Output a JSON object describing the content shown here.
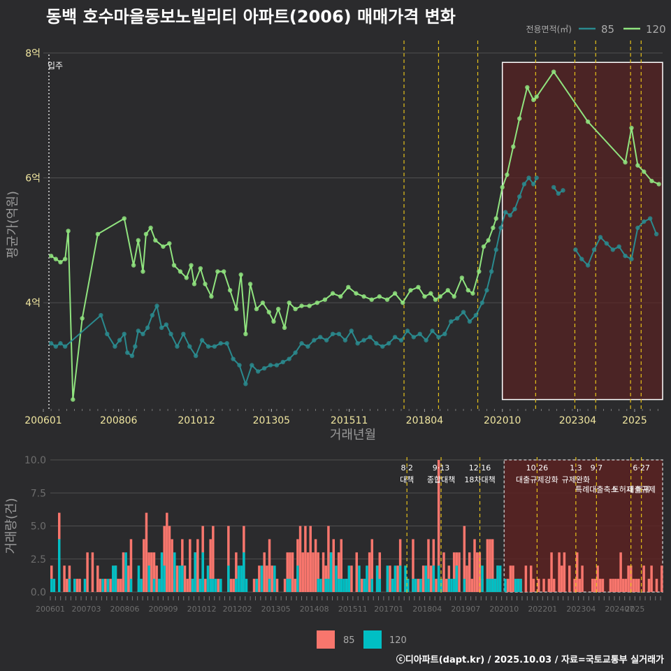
{
  "title": "동백 호수마을동보노빌리티 아파트(2006) 매매가격 변화",
  "caption": "ⓒ디아파트(dapt.kr) / 2025.10.03 / 자료=국토교통부 실거래가",
  "colors": {
    "background": "#2b2b2d",
    "price_85": "#2a8a8e",
    "price_120": "#90e47f",
    "vol_85": "#f8766d",
    "vol_120": "#00bfc4",
    "policy_line": "#e6c21a",
    "highlight_fill": "#5a2222",
    "grid": "#505050"
  },
  "chart_data": [
    {
      "type": "line",
      "name": "price",
      "title": "동백 호수마을동보노빌리티 아파트(2006) 매매가격 변화",
      "xlabel": "거래년월",
      "ylabel": "평균가(억원)",
      "xlim": [
        2006.0,
        2025.9
      ],
      "ylim": [
        2.3,
        8.2
      ],
      "y_ticks": [
        4,
        6,
        8
      ],
      "y_tick_labels": [
        "4억",
        "6억",
        "8억"
      ],
      "x_ticks": [
        2006.0,
        2008.42,
        2010.92,
        2013.33,
        2015.83,
        2018.25,
        2020.75,
        2023.17,
        2025.0
      ],
      "x_tick_labels": [
        "200601",
        "200806",
        "201012",
        "201305",
        "201511",
        "201804",
        "202010",
        "202304",
        "2025"
      ],
      "legend_title": "전용면적(㎡)",
      "legend_position": "top-right",
      "annotation": "입주",
      "annotation_x": 2006.0,
      "highlight_range": [
        2020.75,
        2025.9
      ],
      "policy_dates": [
        2017.59,
        2018.7,
        2019.96,
        2021.82,
        2023.08,
        2023.75,
        2024.87,
        2025.21
      ],
      "series": [
        {
          "name": "120",
          "x": [
            2006.25,
            2006.4,
            2006.55,
            2006.7,
            2006.8,
            2006.95,
            2007.25,
            2007.75,
            2008.6,
            2008.9,
            2009.05,
            2009.2,
            2009.3,
            2009.45,
            2009.6,
            2009.85,
            2010.05,
            2010.2,
            2010.4,
            2010.6,
            2010.75,
            2010.85,
            2011.05,
            2011.2,
            2011.4,
            2011.6,
            2011.8,
            2012.0,
            2012.2,
            2012.35,
            2012.5,
            2012.65,
            2012.85,
            2013.05,
            2013.25,
            2013.4,
            2013.55,
            2013.75,
            2013.9,
            2014.1,
            2014.3,
            2014.55,
            2014.8,
            2015.05,
            2015.3,
            2015.55,
            2015.8,
            2016.05,
            2016.3,
            2016.55,
            2016.8,
            2017.05,
            2017.3,
            2017.55,
            2017.8,
            2018.05,
            2018.25,
            2018.45,
            2018.6,
            2018.75,
            2019.0,
            2019.2,
            2019.45,
            2019.65,
            2019.8,
            2020.0,
            2020.15,
            2020.3,
            2020.45,
            2020.55,
            2020.75,
            2020.9,
            2021.1,
            2021.3,
            2021.55,
            2021.75,
            2021.85,
            2022.4,
            2023.5,
            2024.7,
            2024.9,
            2025.1,
            2025.3,
            2025.55,
            2025.78
          ],
          "values": [
            4.75,
            4.7,
            4.65,
            4.7,
            5.15,
            2.45,
            3.75,
            5.1,
            5.35,
            4.6,
            5.0,
            4.5,
            5.1,
            5.2,
            5.0,
            4.9,
            4.95,
            4.6,
            4.5,
            4.4,
            4.6,
            4.3,
            4.55,
            4.3,
            4.1,
            4.5,
            4.5,
            4.2,
            3.9,
            4.45,
            3.5,
            4.3,
            3.9,
            4.0,
            3.85,
            3.7,
            3.9,
            3.6,
            4.0,
            3.9,
            3.95,
            3.95,
            4.0,
            4.05,
            4.15,
            4.1,
            4.25,
            4.15,
            4.1,
            4.05,
            4.1,
            4.05,
            4.15,
            4.0,
            4.2,
            4.25,
            4.1,
            4.15,
            4.05,
            4.1,
            4.2,
            4.1,
            4.4,
            4.2,
            4.15,
            4.5,
            4.9,
            5.0,
            5.2,
            5.35,
            5.85,
            6.05,
            6.5,
            6.95,
            7.45,
            7.25,
            7.3,
            7.7,
            6.9,
            6.25,
            6.8,
            6.2,
            6.1,
            5.95,
            5.9
          ]
        },
        {
          "name": "85",
          "x": [
            2006.25,
            2006.4,
            2006.55,
            2006.7,
            2007.85,
            2008.05,
            2008.3,
            2008.45,
            2008.6,
            2008.7,
            2008.85,
            2008.95,
            2009.05,
            2009.2,
            2009.35,
            2009.5,
            2009.65,
            2009.8,
            2009.95,
            2010.1,
            2010.3,
            2010.5,
            2010.7,
            2010.9,
            2011.1,
            2011.3,
            2011.5,
            2011.7,
            2011.9,
            2012.1,
            2012.3,
            2012.5,
            2012.7,
            2012.9,
            2013.1,
            2013.3,
            2013.5,
            2013.7,
            2013.9,
            2014.1,
            2014.3,
            2014.5,
            2014.7,
            2014.9,
            2015.1,
            2015.3,
            2015.5,
            2015.7,
            2015.9,
            2016.1,
            2016.3,
            2016.5,
            2016.7,
            2016.9,
            2017.1,
            2017.3,
            2017.5,
            2017.7,
            2017.9,
            2018.1,
            2018.3,
            2018.5,
            2018.7,
            2018.9,
            2019.1,
            2019.3,
            2019.5,
            2019.7,
            2019.9,
            2020.1,
            2020.25,
            2020.4,
            2020.55,
            2020.7,
            2020.85,
            2021.0,
            2021.15,
            2021.3,
            2021.45,
            2021.6,
            2021.75,
            2021.85
          ],
          "values": [
            3.35,
            3.3,
            3.35,
            3.3,
            3.8,
            3.5,
            3.3,
            3.4,
            3.5,
            3.2,
            3.15,
            3.3,
            3.55,
            3.5,
            3.6,
            3.8,
            3.95,
            3.6,
            3.65,
            3.5,
            3.3,
            3.5,
            3.3,
            3.15,
            3.4,
            3.3,
            3.3,
            3.35,
            3.35,
            3.1,
            3.0,
            2.7,
            3.0,
            2.9,
            2.95,
            3.0,
            3.0,
            3.05,
            3.1,
            3.2,
            3.35,
            3.3,
            3.4,
            3.45,
            3.4,
            3.5,
            3.5,
            3.4,
            3.55,
            3.35,
            3.4,
            3.45,
            3.35,
            3.3,
            3.35,
            3.45,
            3.4,
            3.55,
            3.45,
            3.5,
            3.4,
            3.55,
            3.45,
            3.5,
            3.7,
            3.75,
            3.85,
            3.7,
            3.8,
            4.0,
            4.2,
            4.5,
            4.85,
            5.2,
            5.45,
            5.4,
            5.5,
            5.7,
            5.9,
            6.0,
            5.9,
            6.0
          ]
        },
        {
          "name": "85",
          "x": [
            2022.4,
            2022.55,
            2022.7
          ],
          "values": [
            5.85,
            5.75,
            5.8
          ]
        },
        {
          "name": "85",
          "x": [
            2023.1,
            2023.3,
            2023.5,
            2023.7,
            2023.9,
            2024.1,
            2024.3,
            2024.5,
            2024.7,
            2024.9,
            2025.1,
            2025.3,
            2025.5,
            2025.7
          ],
          "values": [
            4.85,
            4.7,
            4.6,
            4.85,
            5.05,
            4.95,
            4.85,
            4.9,
            4.75,
            4.7,
            5.2,
            5.3,
            5.35,
            5.1
          ]
        }
      ]
    },
    {
      "type": "bar",
      "name": "volume",
      "xlabel": "",
      "ylabel": "거래량(건)",
      "xlim": [
        2006.0,
        2025.9
      ],
      "ylim": [
        0,
        10
      ],
      "y_ticks": [
        0.0,
        2.5,
        5.0,
        7.5,
        10.0
      ],
      "y_tick_labels": [
        "0.0",
        "2.5",
        "5.0",
        "7.5",
        "10.0"
      ],
      "x_tick_labels": [
        "200601",
        "200703",
        "200806",
        "200909",
        "201012",
        "201202",
        "201305",
        "201408",
        "201511",
        "201701",
        "201804",
        "201907",
        "202010",
        "202201",
        "202304",
        "202407",
        "2025"
      ],
      "x_ticks": [
        2006.0,
        2007.17,
        2008.42,
        2009.67,
        2010.92,
        2012.08,
        2013.33,
        2014.58,
        2015.83,
        2017.0,
        2018.25,
        2019.5,
        2020.75,
        2022.0,
        2023.25,
        2024.5,
        2025.0
      ],
      "legend_position": "bottom",
      "legend": [
        "85",
        "120"
      ],
      "highlight_range": [
        2020.75,
        2025.9
      ],
      "policies": [
        {
          "x": 2017.59,
          "date": "8·2",
          "label": "대책"
        },
        {
          "x": 2018.7,
          "date": "9·13",
          "label": "종합대책"
        },
        {
          "x": 2019.96,
          "date": "12·16",
          "label": "18차대책"
        },
        {
          "x": 2021.82,
          "date": "10.26",
          "label": "대출규제강화"
        },
        {
          "x": 2023.08,
          "date": "1.3",
          "label": "규제완화"
        },
        {
          "x": 2023.75,
          "date": "9.7",
          "label": "특례대출축소"
        },
        {
          "x": 2024.87,
          "date": "",
          "label": "토허제 해제"
        },
        {
          "x": 2025.21,
          "date": "6·27",
          "label": "대출규제"
        }
      ],
      "series": [
        {
          "name": "85",
          "seed": 7
        },
        {
          "name": "120",
          "seed": 13
        }
      ]
    }
  ]
}
